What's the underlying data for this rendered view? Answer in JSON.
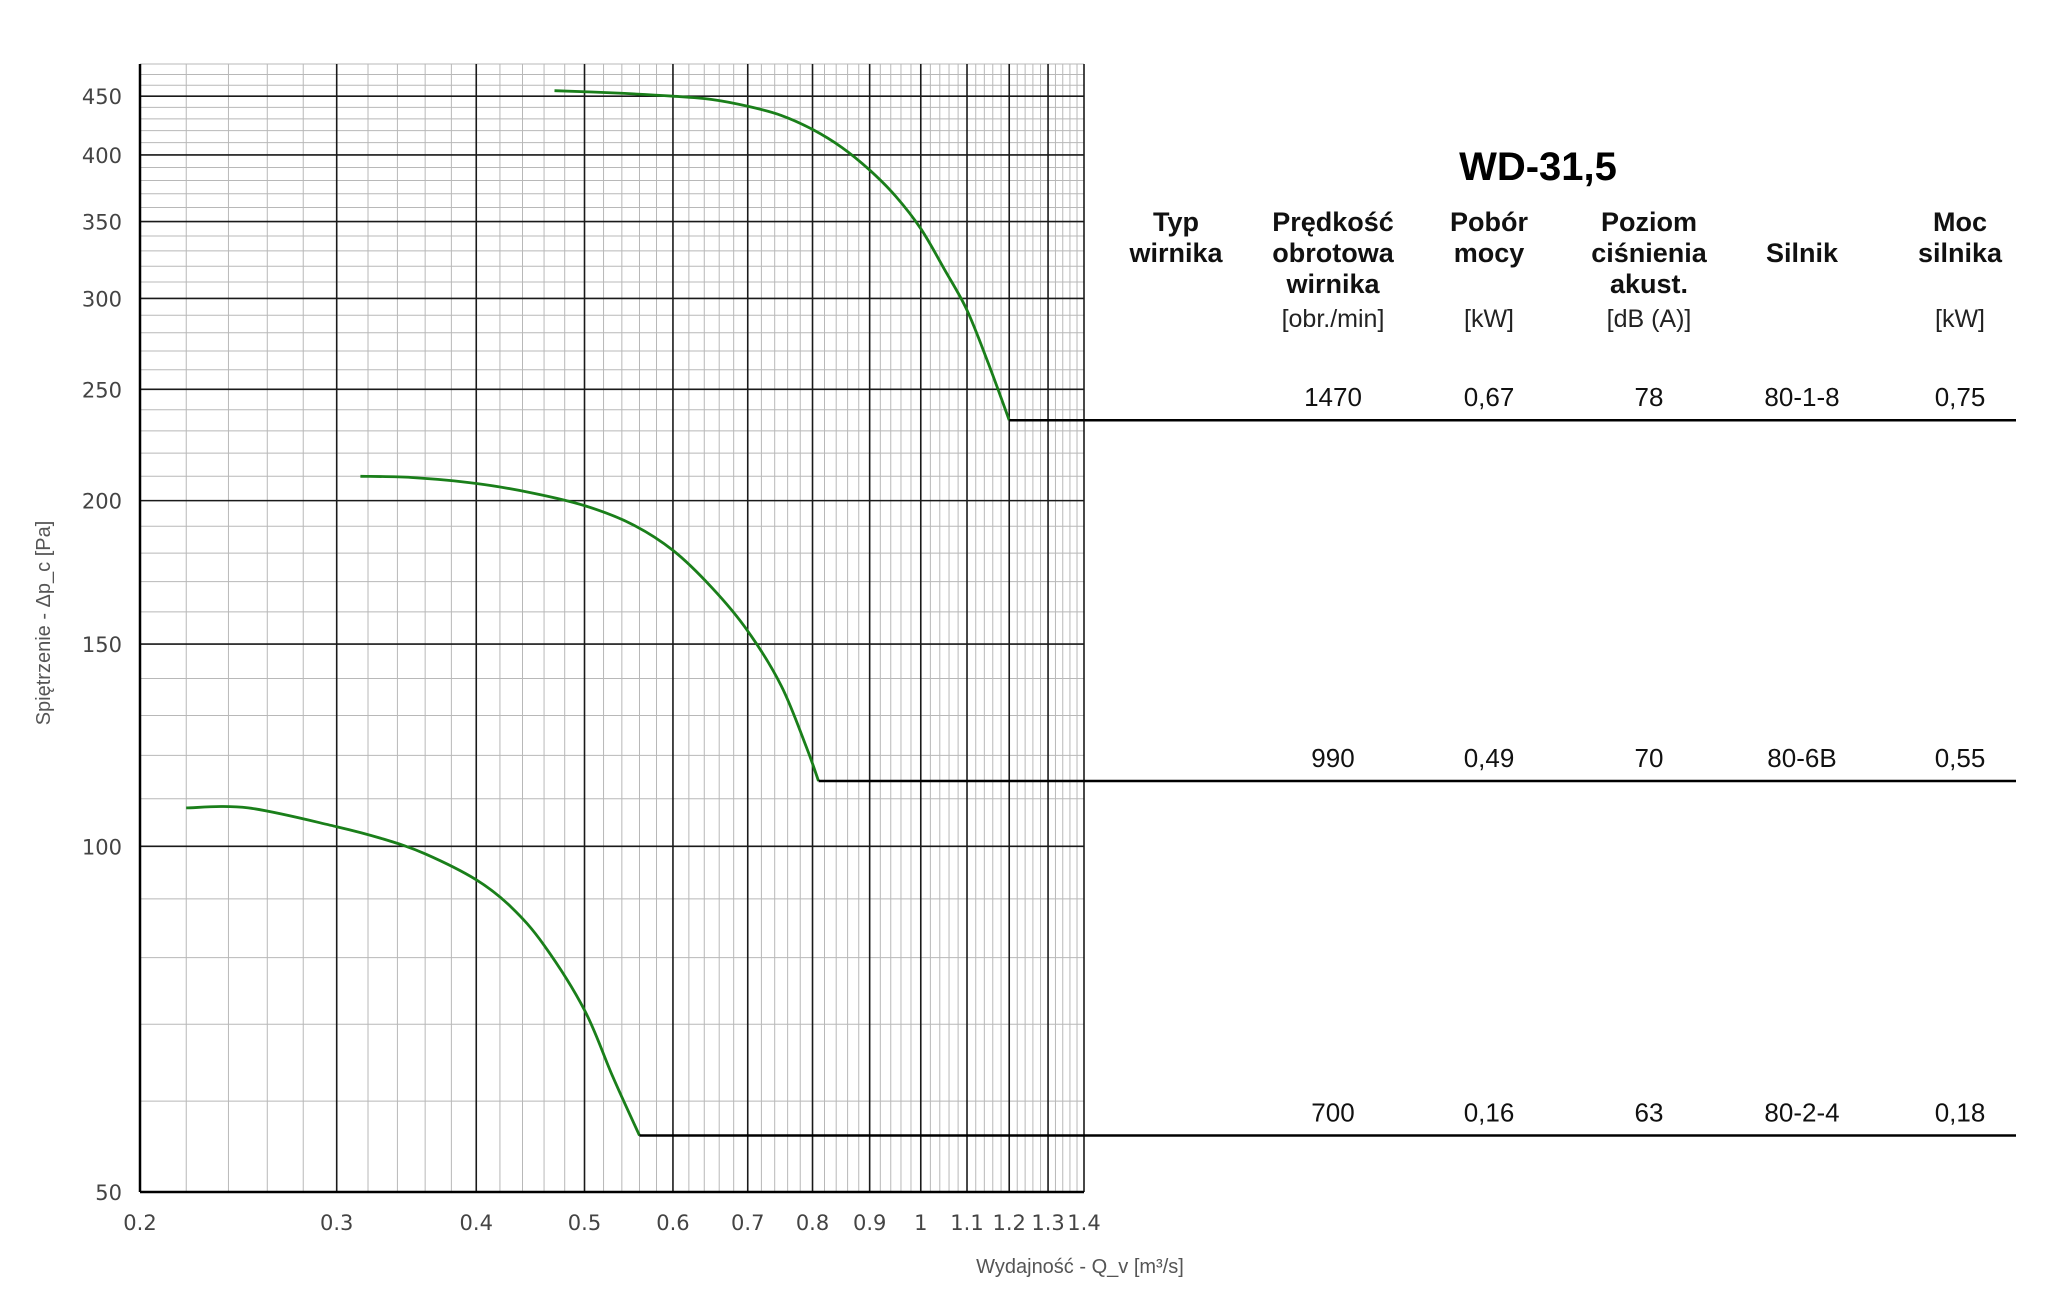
{
  "chart_data": {
    "type": "line",
    "title": "WD-31,5",
    "xlabel": "Wydajność - Q_v [m³/s]",
    "ylabel": "Spiętrzenie - Δp_c [Pa]",
    "x_scale": "log",
    "y_scale": "log",
    "xlim": [
      0.2,
      1.4
    ],
    "ylim": [
      50,
      480
    ],
    "grid": true,
    "x_ticks": [
      "0.2",
      "0.3",
      "0.4",
      "0.5",
      "0.6",
      "0.7",
      "0.8",
      "0.9",
      "1",
      "1.1",
      "1.2",
      "1.3",
      "1.4"
    ],
    "y_ticks": [
      "50",
      "100",
      "150",
      "200",
      "250",
      "300",
      "350",
      "400",
      "450"
    ],
    "line_color": "#1a7f1a",
    "series": [
      {
        "x": [
          0.47,
          0.53,
          0.6,
          0.65,
          0.7,
          0.75,
          0.8,
          0.85,
          0.9,
          0.95,
          1.0,
          1.05,
          1.1,
          1.15,
          1.2
        ],
        "y": [
          455,
          453,
          450,
          447,
          441,
          433,
          421,
          406,
          388,
          368,
          345,
          318,
          293,
          263,
          235
        ]
      },
      {
        "x": [
          0.315,
          0.35,
          0.4,
          0.45,
          0.5,
          0.55,
          0.6,
          0.65,
          0.7,
          0.75,
          0.79,
          0.81
        ],
        "y": [
          210,
          209.5,
          207,
          203,
          198,
          191,
          181,
          168,
          154,
          138,
          122,
          114
        ]
      },
      {
        "x": [
          0.22,
          0.25,
          0.3,
          0.33,
          0.36,
          0.4,
          0.43,
          0.46,
          0.5,
          0.53,
          0.56
        ],
        "y": [
          108,
          108,
          104,
          101.5,
          98.5,
          93.5,
          88.5,
          82,
          72,
          63,
          56
        ]
      }
    ]
  },
  "table": {
    "headers": {
      "typ": [
        "Typ",
        "wirnika"
      ],
      "speed": [
        "Prędkość",
        "obrotowa",
        "wirnika"
      ],
      "power": [
        "Pobór",
        "mocy"
      ],
      "noise": [
        "Poziom",
        "ciśnienia",
        "akust."
      ],
      "motor": [
        "Silnik"
      ],
      "motor_power": [
        "Moc",
        "silnika"
      ]
    },
    "units": {
      "speed": "[obr./min]",
      "power": "[kW]",
      "noise": "[dB (A)]",
      "motor_power": "[kW]"
    },
    "rows": [
      {
        "speed": "1470",
        "power": "0,67",
        "noise": "78",
        "motor": "80-1-8",
        "motor_power": "0,75"
      },
      {
        "speed": "990",
        "power": "0,49",
        "noise": "70",
        "motor": "80-6B",
        "motor_power": "0,55"
      },
      {
        "speed": "700",
        "power": "0,16",
        "noise": "63",
        "motor": "80-2-4",
        "motor_power": "0,18"
      }
    ]
  }
}
